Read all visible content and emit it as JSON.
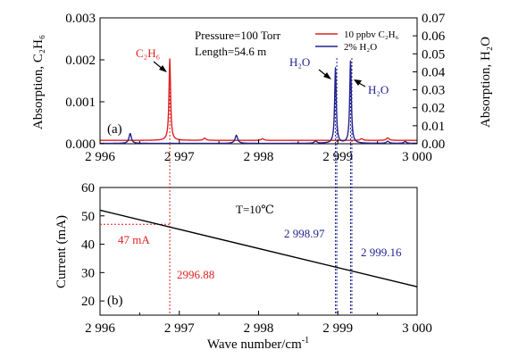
{
  "figure": {
    "x_axis_label": "Wave number/cm",
    "x_axis_label_sup": "-1",
    "x_ticks": [
      {
        "value": 2996,
        "label": "2 996"
      },
      {
        "value": 2997,
        "label": "2 997"
      },
      {
        "value": 2998,
        "label": "2 998"
      },
      {
        "value": 2999,
        "label": "2 999"
      },
      {
        "value": 3000,
        "label": "3 000"
      }
    ]
  },
  "colors": {
    "c2h6": "#e02020",
    "h2o": "#22238f",
    "current": "#000000",
    "axis": "#000000"
  },
  "chart_data": [
    {
      "type": "line",
      "panel_label": "(a)",
      "xlim": [
        2996,
        3000
      ],
      "ylabel_left": "Absorption, C₂H₆",
      "ylabel_right": "Absorption, H₂O",
      "ylim_left": [
        0,
        0.003
      ],
      "ylim_right": [
        0,
        0.07
      ],
      "yticks_left": [
        "0.000",
        "0.001",
        "0.002",
        "0.003"
      ],
      "yticks_right": [
        "0.00",
        "0.01",
        "0.02",
        "0.03",
        "0.04",
        "0.05",
        "0.06",
        "0.07"
      ],
      "annotation_conditions": [
        "Pressure=100 Torr",
        "Length=54.6 m"
      ],
      "peak_labels": [
        {
          "text": "C₂H₆",
          "series": "c2h6",
          "x": 2996.88
        },
        {
          "text": "H₂O",
          "series": "h2o",
          "x": 2998.97
        },
        {
          "text": "H₂O",
          "series": "h2o",
          "x": 2999.16
        }
      ],
      "series": [
        {
          "name": "10 ppbv C₂H₆",
          "axis": "left",
          "baseline": 8e-05,
          "peaks": [
            {
              "x": 2996.88,
              "height": 0.00195,
              "width": 0.012
            },
            {
              "x": 2997.32,
              "height": 5e-05,
              "width": 0.02
            },
            {
              "x": 2998.05,
              "height": 4e-05,
              "width": 0.02
            },
            {
              "x": 2999.3,
              "height": 4e-05,
              "width": 0.02
            },
            {
              "x": 2999.63,
              "height": 6e-05,
              "width": 0.02
            }
          ]
        },
        {
          "name": "2% H₂O",
          "axis": "right",
          "baseline": 0.0002,
          "peaks": [
            {
              "x": 2996.38,
              "height": 0.0055,
              "width": 0.018
            },
            {
              "x": 2997.72,
              "height": 0.0045,
              "width": 0.02
            },
            {
              "x": 2998.72,
              "height": 0.0012,
              "width": 0.02
            },
            {
              "x": 2998.97,
              "height": 0.042,
              "width": 0.012
            },
            {
              "x": 2999.16,
              "height": 0.046,
              "width": 0.012
            },
            {
              "x": 2999.63,
              "height": 0.0012,
              "width": 0.02
            },
            {
              "x": 2999.85,
              "height": 0.001,
              "width": 0.02
            }
          ]
        }
      ]
    },
    {
      "type": "line",
      "panel_label": "(b)",
      "xlim": [
        2996,
        3000
      ],
      "ylabel": "Current (mA)",
      "ylim": [
        15,
        60
      ],
      "yticks": [
        "20",
        "30",
        "40",
        "50",
        "60"
      ],
      "annotation_temperature": "T=10℃",
      "series": [
        {
          "name": "Current",
          "x": [
            2996.0,
            3000.0
          ],
          "y": [
            52.0,
            25.0
          ]
        }
      ],
      "markers": [
        {
          "x": 2996.88,
          "label": "2996.88",
          "current_label": "47 mA",
          "current": 47,
          "color_key": "c2h6"
        },
        {
          "x": 2998.97,
          "label": "2 998.97",
          "color_key": "h2o"
        },
        {
          "x": 2999.16,
          "label": "2 999.16",
          "color_key": "h2o"
        }
      ]
    }
  ]
}
